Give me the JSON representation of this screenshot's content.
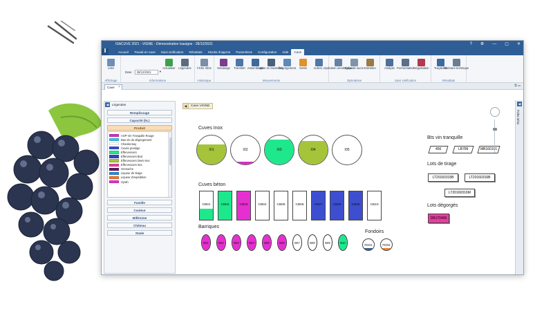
{
  "window": {
    "title": "ISACUVE 2021 - VIGNE - Démonstration Isavigne - 28/12/2021",
    "controls": [
      "?",
      "⚙",
      "—",
      "▢",
      "✕"
    ]
  },
  "menu": [
    "Accueil",
    "Travail en cave",
    "Suivi vinification",
    "Résultats",
    "Stocks d'appros",
    "Paramètres",
    "Configuration",
    "Aide",
    "Cave"
  ],
  "menu_active": "Cave",
  "ribbon": {
    "groups": [
      {
        "label": "Affichage",
        "buttons": [
          {
            "label": "Liste",
            "color": "#6d8fb8"
          }
        ]
      },
      {
        "label": "Informations",
        "date_label": "Date :",
        "date_value": "28/12/2021",
        "buttons": [
          {
            "label": "Actualiser",
            "color": "#3aa14a"
          },
          {
            "label": "Légendes",
            "color": "#5b6c80"
          }
        ]
      },
      {
        "label": "Historique",
        "buttons": [
          {
            "label": "Fiche Infos",
            "color": "#7a8ea6"
          }
        ]
      },
      {
        "label": "Mouvements",
        "buttons": [
          {
            "label": "Vendange",
            "color": "#7b3d8f"
          },
          {
            "label": "Transfert",
            "color": "#4d76a8"
          },
          {
            "label": "Assemblage",
            "color": "#3d6b9c"
          },
          {
            "label": "Mise en bouteilles",
            "color": "#4a5f78"
          },
          {
            "label": "Dégorgement",
            "color": "#5d89b9"
          },
          {
            "label": "Sortie",
            "color": "#e0922b"
          },
          {
            "label": "Autres...",
            "color": "#4f77a8"
          }
        ]
      },
      {
        "label": "Opérations",
        "buttons": [
          {
            "label": "Opération oenologique",
            "color": "#6482a6"
          },
          {
            "label": "Fiche de sucre",
            "color": "#7f93ab"
          },
          {
            "label": "Entretien",
            "color": "#9a7a45"
          }
        ]
      },
      {
        "label": "Suivi vinification",
        "buttons": [
          {
            "label": "Analyse",
            "color": "#4d6f99"
          },
          {
            "label": "Fermentation",
            "color": "#5a6f8a"
          },
          {
            "label": "Dégustation",
            "color": "#b03a4e"
          }
        ]
      },
      {
        "label": "Résultats",
        "buttons": [
          {
            "label": "Traçabilité",
            "color": "#3d6aa0"
          },
          {
            "label": "Itinéraire technique",
            "color": "#6b7d93"
          }
        ]
      }
    ]
  },
  "doc_tab": "Cave",
  "legend_panel": {
    "title": "Légendes",
    "buttons_top": [
      "Remplissage",
      "Capacité (hL)"
    ],
    "produit_label": "Produit",
    "products": [
      {
        "name": "AOP Vin Tranquille Rouge",
        "color": "#d12fc9"
      },
      {
        "name": "Bas vin de dégorgement",
        "color": "#36c6e8"
      },
      {
        "name": "Chardonnay",
        "color": "#ffffff"
      },
      {
        "name": "Cuvée prestige",
        "color": "#3d4fd0"
      },
      {
        "name": "Effervescent",
        "color": "#1ee88c"
      },
      {
        "name": "Effervescent Brut",
        "color": "#3a3fc8"
      },
      {
        "name": "Effervescent Demi-Sec",
        "color": "#a5c43a"
      },
      {
        "name": "Effervescent Sec",
        "color": "#e83ea0"
      },
      {
        "name": "Grenache",
        "color": "#5c1b66"
      },
      {
        "name": "Liqueur de tirage",
        "color": "#2d8bd8"
      },
      {
        "name": "Liqueur d'expédition",
        "color": "#f07a2a"
      },
      {
        "name": "Syrah",
        "color": "#e62fd0"
      }
    ],
    "buttons_bottom": [
      "Famille",
      "Couleur",
      "Millésime",
      "Château",
      "Stade"
    ]
  },
  "main_tab": "Cave VIGNE",
  "right_panel_label": "Fiche infos",
  "sections": {
    "inox": "Cuves Inox",
    "beton": "Cuves béton",
    "barriques": "Barriques",
    "fondoirs": "Fondoirs",
    "bts": "Bts vin tranquille",
    "tirage": "Lots de tirage",
    "degorges": "Lots dégorgés"
  },
  "cuves_inox": [
    {
      "id": "I01",
      "color": "#a5c43a",
      "fill": 0.7
    },
    {
      "id": "I02",
      "color": "#d12fc9",
      "fill": 0.1
    },
    {
      "id": "I03",
      "color": "#1ee88c",
      "fill": 0.85
    },
    {
      "id": "I04",
      "color": "#a5c43a",
      "fill": 0.8
    },
    {
      "id": "I05",
      "color": "#ffffff",
      "fill": 0
    }
  ],
  "cuves_beton": [
    {
      "id": "CB01",
      "color": "#1ee88c",
      "fill": 0.4
    },
    {
      "id": "CB02",
      "color": "#1ee88c",
      "fill": 1
    },
    {
      "id": "CB03",
      "color": "#e62fd0",
      "fill": 1
    },
    {
      "id": "CB04",
      "color": "#ffffff",
      "fill": 0
    },
    {
      "id": "CB05",
      "color": "#ffffff",
      "fill": 0
    },
    {
      "id": "CB06",
      "color": "#ffffff",
      "fill": 0
    },
    {
      "id": "CB07",
      "color": "#3d4fd0",
      "fill": 1
    },
    {
      "id": "CB08",
      "color": "#3d4fd0",
      "fill": 1
    },
    {
      "id": "CB09",
      "color": "#3d4fd0",
      "fill": 1
    },
    {
      "id": "CB10",
      "color": "#ffffff",
      "fill": 0
    }
  ],
  "barriques": [
    {
      "id": "B01",
      "color": "#e62fd0",
      "fill": 1
    },
    {
      "id": "B02",
      "color": "#e62fd0",
      "fill": 1
    },
    {
      "id": "B03",
      "color": "#e62fd0",
      "fill": 1
    },
    {
      "id": "B04",
      "color": "#e62fd0",
      "fill": 1
    },
    {
      "id": "B05",
      "color": "#e62fd0",
      "fill": 1
    },
    {
      "id": "B06",
      "color": "#e62fd0",
      "fill": 1
    },
    {
      "id": "B07",
      "color": "#ffffff",
      "fill": 0
    },
    {
      "id": "B08",
      "color": "#ffffff",
      "fill": 0
    },
    {
      "id": "B09",
      "color": "#ffffff",
      "fill": 0
    },
    {
      "id": "B10",
      "color": "#1ee88c",
      "fill": 1
    }
  ],
  "fondoirs": [
    {
      "id": "FD01",
      "color": "#2e5e95",
      "fill": 0.2
    },
    {
      "id": "FD02",
      "color": "#f07a2a",
      "fill": 0.2
    }
  ],
  "bts_vin_tranquille": [
    "456",
    "LB789",
    "MB160101"
  ],
  "lots_tirage": [
    "LT20160315B",
    "LT20160316B",
    "LT20160316M"
  ],
  "lots_degorges": [
    {
      "id": "DB170406",
      "color": "#e83ea0"
    }
  ]
}
